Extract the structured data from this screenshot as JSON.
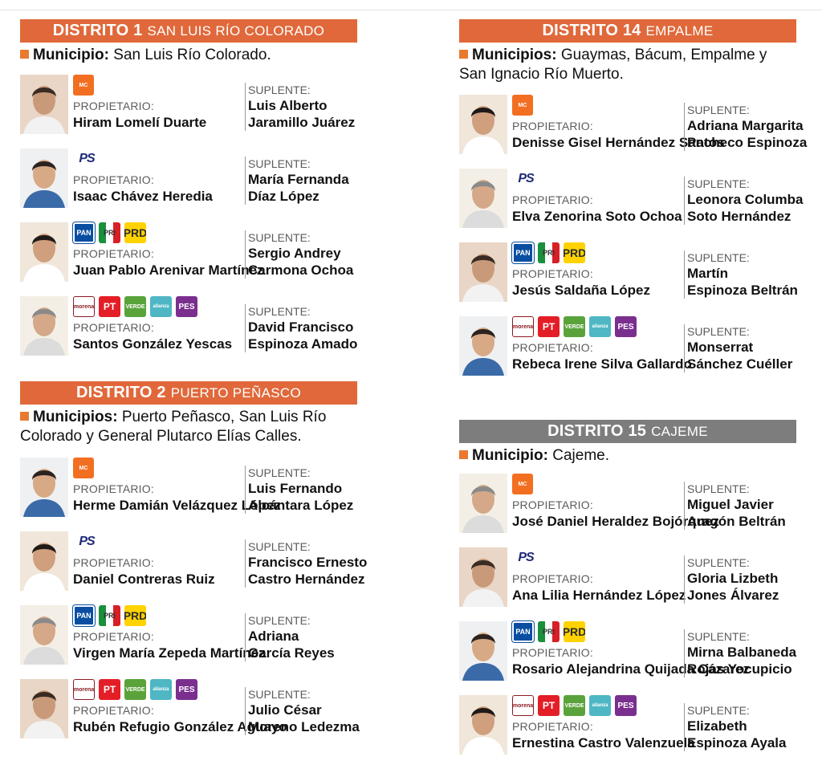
{
  "labels": {
    "propietario": "PROPIETARIO:",
    "suplente": "SUPLENTE:",
    "municipio": "Municipio:",
    "municipios": "Municipios:"
  },
  "colors": {
    "orange_header": "#e0683a",
    "gray_header": "#7d7d7d",
    "accent_square": "#e87a2f"
  },
  "logo_text": {
    "mc": "MC",
    "ps": "PS",
    "pan": "PAN",
    "pri": "PRI",
    "prd": "PRD",
    "morena": "morena",
    "pt": "PT",
    "verde": "VERDE",
    "alianza": "alianza",
    "pes": "PES"
  },
  "districts": [
    {
      "id": "d1",
      "number": "DISTRITO 1",
      "place": "SAN LUIS RÍO COLORADO",
      "header_color": "#e0683a",
      "muni_label": "Municipio:",
      "muni_text": "San Luis Río Colorado.",
      "candidates": [
        {
          "logos": [
            "mc"
          ],
          "propietario": "Hiram Lomelí Duarte",
          "suplente": [
            "Luis Alberto",
            "Jaramillo Juárez"
          ]
        },
        {
          "logos": [
            "ps"
          ],
          "propietario": "Isaac Chávez Heredia",
          "suplente": [
            "María Fernanda",
            "Díaz López"
          ]
        },
        {
          "logos": [
            "pan",
            "pri",
            "prd"
          ],
          "propietario": "Juan Pablo Arenivar Martínez",
          "suplente": [
            "Sergio Andrey",
            "Carmona Ochoa"
          ]
        },
        {
          "logos": [
            "morena",
            "pt",
            "verde",
            "alianza",
            "pes"
          ],
          "propietario": "Santos González Yescas",
          "suplente": [
            "David Francisco",
            "Espinoza Amado"
          ]
        }
      ]
    },
    {
      "id": "d2",
      "number": "DISTRITO 2",
      "place": "PUERTO PEÑASCO",
      "header_color": "#e0683a",
      "muni_label": "Municipios:",
      "muni_text": "Puerto Peñasco, San Luis Río Colorado y General Plutarco Elías Calles.",
      "candidates": [
        {
          "logos": [
            "mc"
          ],
          "propietario": "Herme Damián Velázquez López",
          "suplente": [
            "Luis Fernando",
            "Alcántara López"
          ]
        },
        {
          "logos": [
            "ps"
          ],
          "propietario": "Daniel Contreras Ruiz",
          "suplente": [
            "Francisco Ernesto",
            "Castro Hernández"
          ]
        },
        {
          "logos": [
            "pan",
            "pri",
            "prd"
          ],
          "propietario": "Virgen María Zepeda Martínez",
          "suplente": [
            "Adriana",
            "García Reyes"
          ]
        },
        {
          "logos": [
            "morena",
            "pt",
            "verde",
            "alianza",
            "pes"
          ],
          "propietario": "Rubén Refugio González Aguayo",
          "suplente": [
            "Julio César",
            "Moreno Ledezma"
          ]
        }
      ]
    },
    {
      "id": "d14",
      "number": "DISTRITO 14",
      "place": "EMPALME",
      "header_color": "#e0683a",
      "muni_label": "Municipios:",
      "muni_text": "Guaymas, Bácum, Empalme y San Ignacio Río Muerto.",
      "candidates": [
        {
          "logos": [
            "mc"
          ],
          "propietario": "Denisse Gisel Hernández Santos",
          "suplente": [
            "Adriana Margarita",
            "Pacheco Espinoza"
          ]
        },
        {
          "logos": [
            "ps"
          ],
          "propietario": "Elva Zenorina Soto Ochoa",
          "suplente": [
            "Leonora Columba",
            "Soto Hernández"
          ]
        },
        {
          "logos": [
            "pan",
            "pri",
            "prd"
          ],
          "propietario": "Jesús Saldaña López",
          "suplente": [
            "Martín",
            "Espinoza Beltrán"
          ]
        },
        {
          "logos": [
            "morena",
            "pt",
            "verde",
            "alianza",
            "pes"
          ],
          "propietario": "Rebeca Irene Silva Gallardo",
          "suplente": [
            "Monserrat",
            "Sánchez Cuéller"
          ]
        }
      ]
    },
    {
      "id": "d15",
      "number": "DISTRITO 15",
      "place": "CAJEME",
      "header_color": "#7d7d7d",
      "muni_label": "Municipio:",
      "muni_text": "Cajeme.",
      "candidates": [
        {
          "logos": [
            "mc"
          ],
          "propietario": "José Daniel Heraldez Bojórquez",
          "suplente": [
            "Miguel Javier",
            "Aragón Beltrán"
          ]
        },
        {
          "logos": [
            "ps"
          ],
          "propietario": "Ana Lilia Hernández López",
          "suplente": [
            "Gloria Lizbeth",
            "Jones Álvarez"
          ]
        },
        {
          "logos": [
            "pan",
            "pri",
            "prd"
          ],
          "propietario": "Rosario Alejandrina Quijada Cázarez",
          "suplente": [
            "Mirna Balbaneda",
            "Rojas Yocupicio"
          ]
        },
        {
          "logos": [
            "morena",
            "pt",
            "verde",
            "alianza",
            "pes"
          ],
          "propietario": "Ernestina Castro Valenzuela",
          "suplente": [
            "Elizabeth",
            "Espinoza Ayala"
          ]
        }
      ]
    }
  ]
}
